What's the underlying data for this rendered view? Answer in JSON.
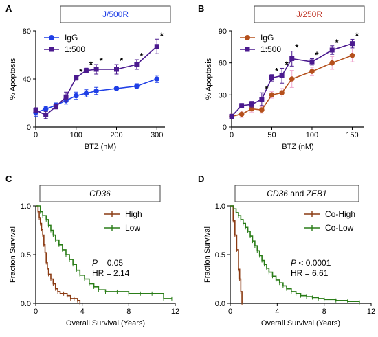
{
  "figure": {
    "panels": [
      "A",
      "B",
      "C",
      "D"
    ]
  },
  "colors": {
    "igg_blue": "#1f3fe6",
    "ratio_purple": "#4b1a8f",
    "igg_brown": "#b5501c",
    "error_pink": "#f0a8cf",
    "km_brown": "#8a3a12",
    "km_green": "#2a7d18"
  },
  "chart_data": [
    {
      "panel": "A",
      "type": "line",
      "title": "J/500R",
      "xlabel": "BTZ (nM)",
      "ylabel": "% Apoptosis",
      "xlim": [
        0,
        320
      ],
      "ylim": [
        0,
        80
      ],
      "xticks": [
        0,
        100,
        200,
        300
      ],
      "yticks": [
        0,
        40,
        80
      ],
      "legend_position": "top-left",
      "series": [
        {
          "name": "IgG",
          "color": "#1f3fe6",
          "marker": "circle",
          "x": [
            0,
            25,
            50,
            75,
            100,
            125,
            150,
            200,
            250,
            300
          ],
          "y": [
            12,
            15,
            18,
            22,
            26,
            28,
            30,
            32,
            34,
            40
          ],
          "err": [
            3,
            2,
            2,
            3,
            3,
            3,
            3,
            2,
            2,
            3
          ]
        },
        {
          "name": "1:500",
          "color": "#4b1a8f",
          "marker": "square",
          "x": [
            0,
            25,
            50,
            75,
            100,
            125,
            150,
            200,
            250,
            300
          ],
          "y": [
            14,
            10,
            17,
            25,
            41,
            47,
            48,
            48,
            52,
            67
          ],
          "err": [
            2,
            3,
            2,
            4,
            2,
            2,
            4,
            4,
            4,
            6
          ]
        }
      ],
      "significance": {
        "symbol": "*",
        "x": [
          100,
          125,
          150,
          200,
          250,
          300
        ]
      }
    },
    {
      "panel": "B",
      "type": "line",
      "title": "J/250R",
      "xlabel": "BTZ (nM)",
      "ylabel": "% Apoptosis",
      "xlim": [
        0,
        165
      ],
      "ylim": [
        0,
        90
      ],
      "xticks": [
        0,
        50,
        100,
        150
      ],
      "yticks": [
        0,
        30,
        60,
        90
      ],
      "legend_position": "top-left",
      "series": [
        {
          "name": "IgG",
          "color": "#b5501c",
          "marker": "circle",
          "x": [
            0,
            12.5,
            25,
            37.5,
            50,
            62.5,
            75,
            100,
            125,
            150
          ],
          "y": [
            10,
            12,
            17,
            16,
            30,
            32,
            45,
            52,
            60,
            67
          ],
          "err": [
            2,
            3,
            3,
            3,
            3,
            4,
            8,
            4,
            6,
            6
          ]
        },
        {
          "name": "1:500",
          "color": "#4b1a8f",
          "marker": "square",
          "x": [
            0,
            12.5,
            25,
            37.5,
            50,
            62.5,
            75,
            100,
            125,
            150
          ],
          "y": [
            10,
            20,
            21,
            26,
            46,
            48,
            64,
            61,
            72,
            78
          ],
          "err": [
            2,
            2,
            3,
            6,
            3,
            7,
            7,
            3,
            4,
            4
          ]
        }
      ],
      "significance": {
        "symbol": "*",
        "x": [
          37.5,
          50,
          62.5,
          75,
          100,
          125,
          150
        ]
      }
    },
    {
      "panel": "C",
      "type": "line",
      "subtype": "kaplan-meier",
      "title": "CD36",
      "xlabel": "Overall Survival (Years)",
      "ylabel": "Fraction Survival",
      "xlim": [
        0,
        12
      ],
      "ylim": [
        0,
        1
      ],
      "xticks": [
        0,
        4,
        8,
        12
      ],
      "yticks": [
        0.0,
        0.5,
        1.0
      ],
      "legend_position": "top-right",
      "annotations": [
        "P = 0.05",
        "HR = 2.14"
      ],
      "series": [
        {
          "name": "High",
          "color": "#8a3a12",
          "x": [
            0,
            0.2,
            0.3,
            0.4,
            0.5,
            0.6,
            0.7,
            0.8,
            0.9,
            1.0,
            1.1,
            1.3,
            1.5,
            1.7,
            1.9,
            2.1,
            2.4,
            2.7,
            3.0,
            3.3,
            3.6,
            3.8
          ],
          "y": [
            1.0,
            0.94,
            0.88,
            0.82,
            0.76,
            0.7,
            0.6,
            0.52,
            0.42,
            0.36,
            0.3,
            0.25,
            0.2,
            0.15,
            0.12,
            0.1,
            0.1,
            0.08,
            0.05,
            0.05,
            0.03,
            0.0
          ]
        },
        {
          "name": "Low",
          "color": "#2a7d18",
          "x": [
            0,
            0.4,
            0.6,
            0.9,
            1.1,
            1.3,
            1.5,
            1.7,
            2.0,
            2.3,
            2.6,
            2.9,
            3.2,
            3.5,
            3.8,
            4.2,
            4.6,
            5.0,
            5.4,
            6.0,
            7.0,
            8.0,
            9.0,
            10.0,
            11.0,
            11.7
          ],
          "y": [
            1.0,
            0.94,
            0.9,
            0.86,
            0.8,
            0.75,
            0.7,
            0.65,
            0.6,
            0.55,
            0.5,
            0.45,
            0.4,
            0.34,
            0.29,
            0.25,
            0.2,
            0.17,
            0.14,
            0.12,
            0.12,
            0.1,
            0.1,
            0.1,
            0.05,
            0.05
          ]
        }
      ]
    },
    {
      "panel": "D",
      "type": "line",
      "subtype": "kaplan-meier",
      "title": "CD36 and ZEB1",
      "xlabel": "Overall Survival (Years)",
      "ylabel": "Fraction Survival",
      "xlim": [
        0,
        12
      ],
      "ylim": [
        0,
        1
      ],
      "xticks": [
        0,
        4,
        8,
        12
      ],
      "yticks": [
        0.0,
        0.5,
        1.0
      ],
      "legend_position": "top-right",
      "annotations": [
        "P < 0.0001",
        "HR = 6.61"
      ],
      "series": [
        {
          "name": "Co-High",
          "color": "#8a3a12",
          "x": [
            0,
            0.25,
            0.4,
            0.55,
            0.7,
            0.8,
            0.9,
            1.0
          ],
          "y": [
            1.0,
            0.85,
            0.7,
            0.55,
            0.35,
            0.25,
            0.12,
            0.0
          ]
        },
        {
          "name": "Co-Low",
          "color": "#2a7d18",
          "x": [
            0,
            0.3,
            0.5,
            0.7,
            0.9,
            1.1,
            1.3,
            1.5,
            1.7,
            1.9,
            2.1,
            2.3,
            2.5,
            2.7,
            2.9,
            3.1,
            3.3,
            3.6,
            3.9,
            4.2,
            4.5,
            4.8,
            5.2,
            5.6,
            6.0,
            6.5,
            7.0,
            7.5,
            8.0,
            9.0,
            10.0,
            11.0
          ],
          "y": [
            1.0,
            0.97,
            0.93,
            0.9,
            0.86,
            0.82,
            0.78,
            0.74,
            0.69,
            0.64,
            0.59,
            0.54,
            0.49,
            0.44,
            0.4,
            0.36,
            0.32,
            0.28,
            0.24,
            0.21,
            0.18,
            0.15,
            0.12,
            0.1,
            0.08,
            0.07,
            0.06,
            0.05,
            0.04,
            0.03,
            0.02,
            0.01
          ]
        }
      ]
    }
  ]
}
